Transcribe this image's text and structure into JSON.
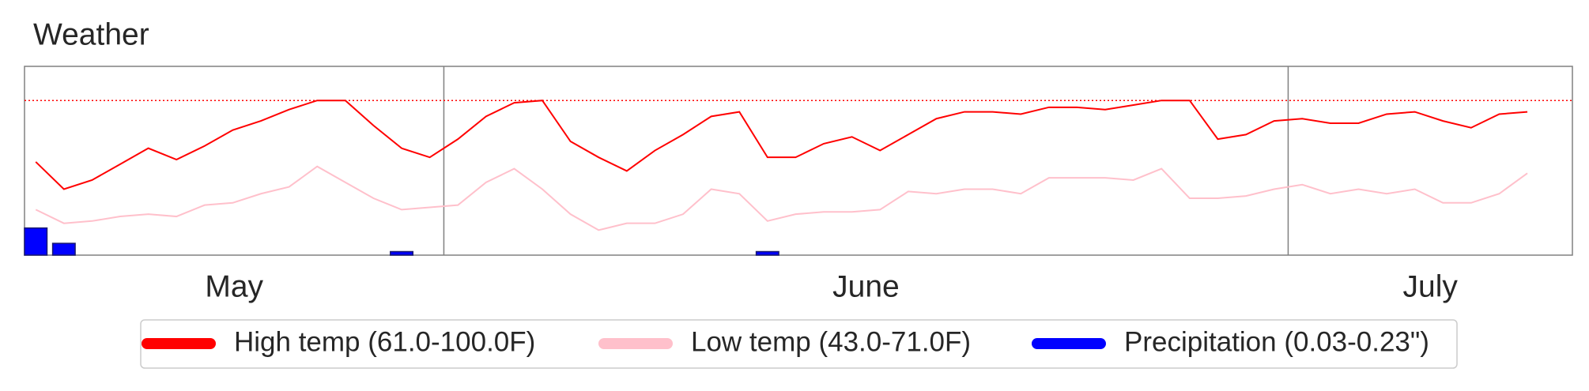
{
  "chart_data": {
    "type": "line",
    "title": "Weather",
    "categories": [
      "May",
      "May",
      "May",
      "May",
      "May",
      "May",
      "May",
      "May",
      "May",
      "May",
      "May",
      "May",
      "May",
      "May",
      "May",
      "June",
      "June",
      "June",
      "June",
      "June",
      "June",
      "June",
      "June",
      "June",
      "June",
      "June",
      "June",
      "June",
      "June",
      "June",
      "June",
      "June",
      "June",
      "June",
      "June",
      "June",
      "June",
      "June",
      "June",
      "June",
      "June",
      "June",
      "June",
      "June",
      "June",
      "July",
      "July",
      "July",
      "July",
      "July",
      "July",
      "July",
      "July",
      "July"
    ],
    "ylim": [
      32,
      115
    ],
    "y2lim": [
      0,
      1.6
    ],
    "hline": 100,
    "hline_color": "#ff0000",
    "series": [
      {
        "name": "High temp (61.0-100.0F)",
        "color": "#ff0000",
        "values": [
          73,
          61,
          65,
          72,
          79,
          74,
          80,
          87,
          91,
          96,
          100,
          100,
          89,
          79,
          75,
          83,
          93,
          99,
          100,
          82,
          75,
          69,
          78,
          85,
          93,
          95,
          75,
          75,
          81,
          84,
          78,
          85,
          92,
          95,
          95,
          94,
          97,
          97,
          96,
          98,
          100,
          100,
          83,
          85,
          91,
          92,
          90,
          90,
          94,
          95,
          91,
          88,
          94,
          95
        ]
      },
      {
        "name": "Low temp (43.0-71.0F)",
        "color": "#ffc0cb",
        "values": [
          52,
          46,
          47,
          49,
          50,
          49,
          54,
          55,
          59,
          62,
          71,
          64,
          57,
          52,
          53,
          54,
          64,
          70,
          61,
          50,
          43,
          46,
          46,
          50,
          61,
          59,
          47,
          50,
          51,
          51,
          52,
          60,
          59,
          61,
          61,
          59,
          66,
          66,
          66,
          65,
          70,
          57,
          57,
          58,
          61,
          63,
          59,
          61,
          59,
          61,
          55,
          55,
          59,
          68
        ]
      },
      {
        "name": "Precipitation (0.03-0.23\")",
        "color": "#0000ff",
        "axis": "y2",
        "type": "bar",
        "values": [
          0.23,
          0.1,
          null,
          null,
          null,
          null,
          null,
          null,
          null,
          null,
          null,
          null,
          null,
          0.03,
          null,
          null,
          null,
          null,
          null,
          null,
          null,
          null,
          null,
          null,
          null,
          null,
          0.03,
          null,
          null,
          null,
          null,
          null,
          null,
          null,
          null,
          null,
          null,
          null,
          null,
          null,
          null,
          null,
          null,
          null,
          null,
          null,
          null,
          null,
          null,
          null,
          null,
          null,
          null,
          null
        ]
      }
    ]
  }
}
